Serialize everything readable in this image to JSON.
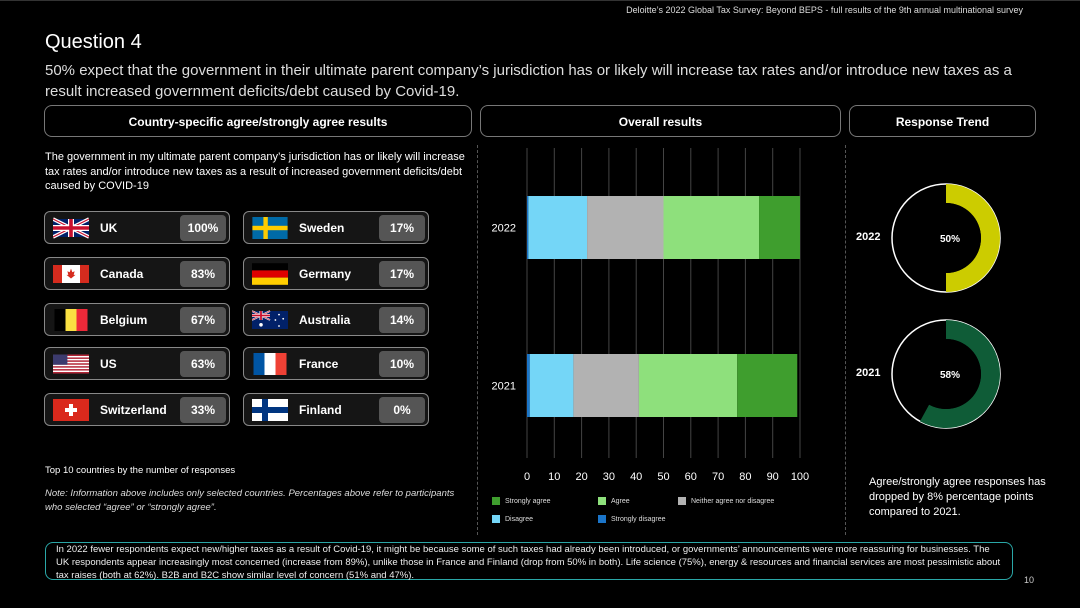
{
  "header": {
    "source": "Deloitte’s 2022 Global Tax Survey: Beyond BEPS  - full results of the 9th annual multinational survey",
    "question": "Question 4",
    "subtitle": "50% expect that the government in their ultimate parent company’s jurisdiction has or likely will increase tax rates and/or introduce new taxes as a result increased government deficits/debt caused by Covid-19."
  },
  "panels": {
    "country_title": "Country-specific agree/strongly agree results",
    "overall_title": "Overall results",
    "trend_title": "Response Trend"
  },
  "countries": {
    "description": "The government in my ultimate parent company’s jurisdiction has or likely will increase tax rates and/or introduce new taxes as a result of increased government deficits/debt caused by COVID-19",
    "items": [
      {
        "name": "UK",
        "value": "100%",
        "flag": "uk-flag"
      },
      {
        "name": "Sweden",
        "value": "17%",
        "flag": "sweden-flag"
      },
      {
        "name": "Canada",
        "value": "83%",
        "flag": "canada-flag"
      },
      {
        "name": "Germany",
        "value": "17%",
        "flag": "germany-flag"
      },
      {
        "name": "Belgium",
        "value": "67%",
        "flag": "belgium-flag"
      },
      {
        "name": "Australia",
        "value": "14%",
        "flag": "australia-flag"
      },
      {
        "name": "US",
        "value": "63%",
        "flag": "us-flag"
      },
      {
        "name": "France",
        "value": "10%",
        "flag": "france-flag"
      },
      {
        "name": "Switzerland",
        "value": "33%",
        "flag": "switzerland-flag"
      },
      {
        "name": "Finland",
        "value": "0%",
        "flag": "finland-flag"
      }
    ],
    "top10_label": "Top 10 countries by the number of responses",
    "note": "Note: Information above includes only selected countries. Percentages above refer to participants who selected “agree” or “strongly agree”."
  },
  "chart_data": [
    {
      "type": "bar",
      "orientation": "horizontal-stacked",
      "categories": [
        "2022",
        "2021"
      ],
      "series": [
        {
          "name": "Strongly disagree",
          "values": [
            0.5,
            1
          ],
          "color": "#1b75c9"
        },
        {
          "name": "Disagree",
          "values": [
            21.5,
            16
          ],
          "color": "#74d6f7"
        },
        {
          "name": "Neither agree nor disagree",
          "values": [
            28,
            24
          ],
          "color": "#b2b2b2"
        },
        {
          "name": "Agree",
          "values": [
            35,
            36
          ],
          "color": "#8ee07c"
        },
        {
          "name": "Strongly agree",
          "values": [
            15,
            22
          ],
          "color": "#3f9e2e"
        }
      ],
      "xlim": [
        0,
        100
      ],
      "xticks": [
        "0",
        "10",
        "20",
        "30",
        "40",
        "50",
        "60",
        "70",
        "80",
        "90",
        "100"
      ],
      "legend": [
        "Strongly agree",
        "Agree",
        "Neither agree nor disagree",
        "Disagree",
        "Strongly disagree"
      ],
      "legend_position": "bottom"
    },
    {
      "type": "pie",
      "label": "2022",
      "value": 50,
      "value_label": "50%",
      "color": "#cccc00"
    },
    {
      "type": "pie",
      "label": "2021",
      "value": 58,
      "value_label": "58%",
      "color": "#0f5c37"
    }
  ],
  "trend": {
    "text": "Agree/strongly agree responses has dropped by 8% percentage points compared to 2021."
  },
  "footer": {
    "text": "In 2022 fewer respondents expect new/higher taxes as a result of Covid-19, it might be because some of such taxes had already been introduced, or governments’ announcements were more reassuring for businesses. The UK respondents appear increasingly most concerned (increase from 89%), unlike those in France and Finland (drop from 50% in both). Life science (75%), energy & resources and financial services are most pessimistic about tax raises (both at 62%). B2B and B2C show similar level of concern (51% and 47%).",
    "page": "10"
  }
}
